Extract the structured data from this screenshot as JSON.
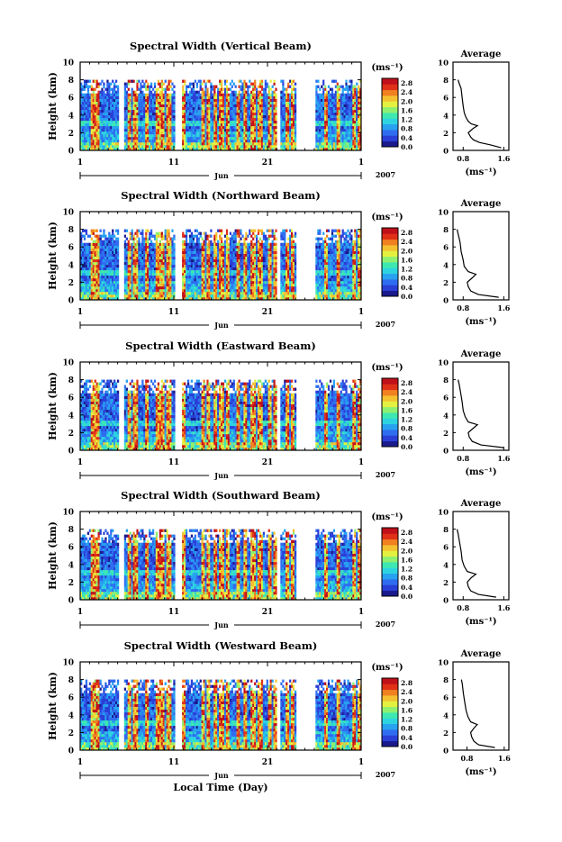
{
  "figure": {
    "xlabel": "Local Time (Day)"
  },
  "chart_data": [
    {
      "type": "heatmap",
      "title": "Spectral Width (Vertical Beam)",
      "ylabel": "Height (km)",
      "ylim": [
        0,
        10
      ],
      "y_ticks": [
        "0",
        "2",
        "4",
        "6",
        "8",
        "10"
      ],
      "x_ticks": [
        "1",
        "11",
        "21",
        "1"
      ],
      "month_label": "Jun",
      "year_label": "2007",
      "colorbar": {
        "unit": "(ms⁻¹)",
        "ticks": [
          "0.0",
          "0.4",
          "0.8",
          "1.2",
          "1.6",
          "2.0",
          "2.4",
          "2.8"
        ],
        "range": [
          0,
          3.0
        ]
      },
      "profile": {
        "title": "Average",
        "xlabel": "(ms⁻¹)",
        "x_ticks": [
          "0.8",
          "1.6"
        ],
        "xlim": [
          0.6,
          1.7
        ],
        "heights": [
          0.3,
          0.6,
          0.9,
          1.2,
          1.5,
          2.0,
          2.5,
          2.8,
          3.0,
          3.3,
          3.8,
          4.3,
          5.0,
          6.0,
          7.0,
          7.6,
          8.0
        ],
        "values": [
          1.55,
          1.35,
          1.12,
          1.0,
          0.95,
          0.9,
          1.0,
          1.08,
          0.96,
          0.9,
          0.85,
          0.82,
          0.8,
          0.78,
          0.76,
          0.72,
          0.7
        ]
      }
    },
    {
      "type": "heatmap",
      "title": "Spectral Width (Northward Beam)",
      "ylabel": "Height (km)",
      "ylim": [
        0,
        10
      ],
      "y_ticks": [
        "0",
        "2",
        "4",
        "6",
        "8",
        "10"
      ],
      "x_ticks": [
        "1",
        "11",
        "21",
        "1"
      ],
      "month_label": "Jun",
      "year_label": "2007",
      "colorbar": {
        "unit": "(ms⁻¹)",
        "ticks": [
          "0.0",
          "0.4",
          "0.8",
          "1.2",
          "1.6",
          "2.0",
          "2.4",
          "2.8"
        ],
        "range": [
          0,
          3.0
        ]
      },
      "profile": {
        "title": "Average",
        "xlabel": "(ms⁻¹)",
        "x_ticks": [
          "0.8",
          "1.6"
        ],
        "xlim": [
          0.6,
          1.7
        ],
        "heights": [
          0.3,
          0.6,
          1.0,
          1.5,
          2.0,
          2.5,
          2.9,
          3.2,
          3.8,
          4.5,
          5.5,
          6.5,
          7.5,
          8.0
        ],
        "values": [
          1.5,
          1.1,
          0.95,
          0.9,
          0.88,
          0.98,
          1.05,
          0.9,
          0.82,
          0.8,
          0.76,
          0.74,
          0.7,
          0.68
        ]
      }
    },
    {
      "type": "heatmap",
      "title": "Spectral Width (Eastward Beam)",
      "ylabel": "Height (km)",
      "ylim": [
        0,
        10
      ],
      "y_ticks": [
        "0",
        "2",
        "4",
        "6",
        "8",
        "10"
      ],
      "x_ticks": [
        "1",
        "11",
        "21",
        "1"
      ],
      "month_label": "Jun",
      "year_label": "2007",
      "colorbar": {
        "unit": "(ms⁻¹)",
        "ticks": [
          "0.0",
          "0.4",
          "0.8",
          "1.2",
          "1.6",
          "2.0",
          "2.4",
          "2.8"
        ],
        "range": [
          0,
          3.0
        ]
      },
      "profile": {
        "title": "Average",
        "xlabel": "(ms⁻¹)",
        "x_ticks": [
          "0.8",
          "1.6"
        ],
        "xlim": [
          0.6,
          1.7
        ],
        "heights": [
          0.3,
          0.6,
          1.0,
          1.5,
          2.0,
          2.5,
          2.9,
          3.2,
          3.8,
          4.5,
          5.5,
          6.5,
          7.5,
          8.0
        ],
        "values": [
          1.6,
          1.15,
          0.98,
          0.92,
          0.9,
          1.0,
          1.08,
          0.9,
          0.84,
          0.8,
          0.78,
          0.75,
          0.72,
          0.7
        ]
      }
    },
    {
      "type": "heatmap",
      "title": "Spectral Width (Southward Beam)",
      "ylabel": "Height (km)",
      "ylim": [
        0,
        10
      ],
      "y_ticks": [
        "0",
        "2",
        "4",
        "6",
        "8",
        "10"
      ],
      "x_ticks": [
        "1",
        "11",
        "21",
        "1"
      ],
      "month_label": "Jun",
      "year_label": "2007",
      "colorbar": {
        "unit": "(ms⁻¹)",
        "ticks": [
          "0.0",
          "0.4",
          "0.8",
          "1.2",
          "1.6",
          "2.0",
          "2.4",
          "2.8"
        ],
        "range": [
          0,
          3.0
        ]
      },
      "profile": {
        "title": "Average",
        "xlabel": "(ms⁻¹)",
        "x_ticks": [
          "0.8",
          "1.6"
        ],
        "xlim": [
          0.6,
          1.7
        ],
        "heights": [
          0.3,
          0.6,
          1.0,
          1.5,
          2.0,
          2.5,
          2.9,
          3.2,
          3.8,
          4.5,
          5.5,
          6.5,
          7.5,
          8.0
        ],
        "values": [
          1.45,
          1.1,
          0.95,
          0.9,
          0.88,
          0.96,
          1.05,
          0.88,
          0.82,
          0.78,
          0.76,
          0.73,
          0.7,
          0.68
        ]
      }
    },
    {
      "type": "heatmap",
      "title": "Spectral Width (Westward Beam)",
      "ylabel": "Height (km)",
      "ylim": [
        0,
        10
      ],
      "y_ticks": [
        "0",
        "2",
        "4",
        "6",
        "8",
        "10"
      ],
      "x_ticks": [
        "1",
        "11",
        "21",
        "1"
      ],
      "month_label": "Jun",
      "year_label": "2007",
      "colorbar": {
        "unit": "(ms⁻¹)",
        "ticks": [
          "0.0",
          "0.4",
          "0.8",
          "1.2",
          "1.6",
          "2.0",
          "2.4",
          "2.8"
        ],
        "range": [
          0,
          3.0
        ]
      },
      "profile": {
        "title": "Average",
        "xlabel": "(ms⁻¹)",
        "x_ticks": [
          "0.8",
          "1.6"
        ],
        "xlim": [
          0.5,
          1.7
        ],
        "heights": [
          0.3,
          0.6,
          1.0,
          1.5,
          2.0,
          2.5,
          2.9,
          3.2,
          3.8,
          4.5,
          5.5,
          6.5,
          7.5,
          8.0
        ],
        "values": [
          1.4,
          1.05,
          0.95,
          0.9,
          0.88,
          0.95,
          1.02,
          0.88,
          0.82,
          0.78,
          0.75,
          0.72,
          0.7,
          0.68
        ]
      }
    }
  ],
  "data_gaps_days": [
    [
      4.0,
      4.6
    ],
    [
      10.0,
      10.8
    ],
    [
      12.2,
      12.3
    ],
    [
      21.0,
      21.2
    ],
    [
      23.0,
      25.0
    ]
  ],
  "colormap": [
    "#1a1a8c",
    "#2a3fd6",
    "#2f6df0",
    "#27a1f0",
    "#2dd4e0",
    "#3ee8b0",
    "#8ef070",
    "#e4f040",
    "#f5c030",
    "#f08020",
    "#e03018",
    "#c0101a"
  ]
}
